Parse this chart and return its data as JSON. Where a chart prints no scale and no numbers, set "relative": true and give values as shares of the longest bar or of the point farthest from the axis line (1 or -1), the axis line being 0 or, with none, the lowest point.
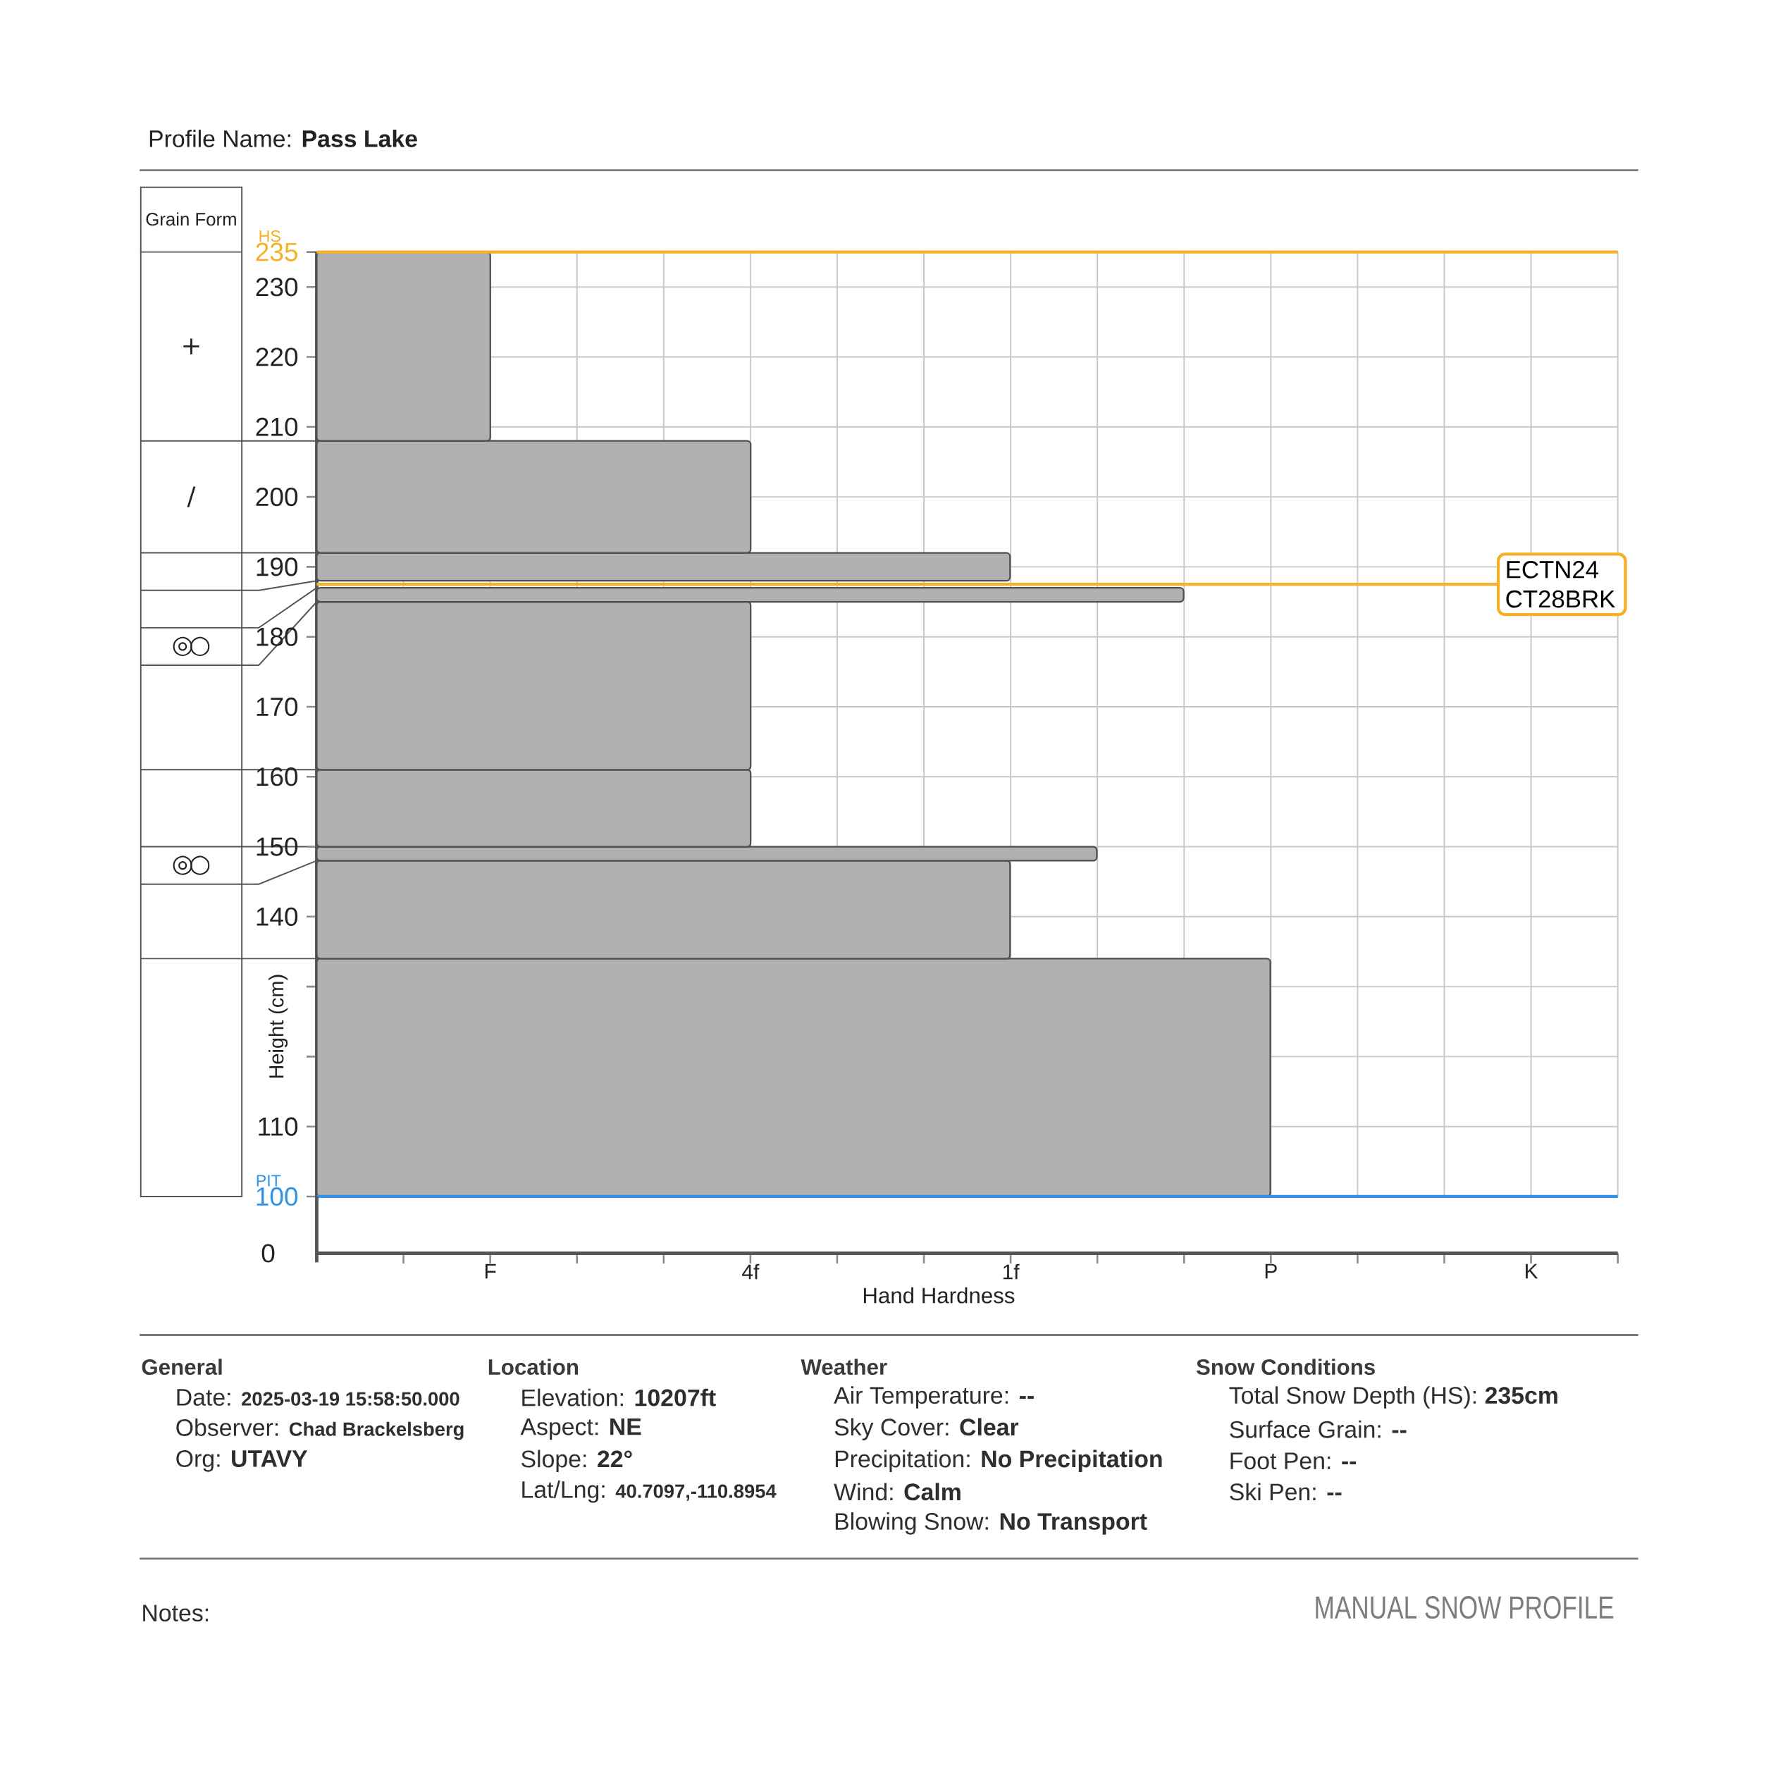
{
  "chart_data": {
    "type": "bar",
    "orientation": "horizontal",
    "relative": true,
    "title": "Profile Name: **Pass Lake**",
    "xlabel": "Hand Hardness",
    "ylabel": "Height (cm)",
    "x": [
      117,
      141,
      149,
      155.5,
      173,
      186,
      187.5,
      190,
      200,
      221.5
    ],
    "values": [
      1,
      0.727,
      0.818,
      0.455,
      0.455,
      0.909,
      null,
      0.727,
      0.455,
      0.182
    ],
    "color": "#b0b0b0",
    "ylim": [
      100,
      235
    ],
    "yticks": [
      100,
      110,
      {
        "value": 120,
        "label": null
      },
      {
        "value": 130,
        "label": null
      },
      140,
      150,
      160,
      170,
      180,
      190,
      200,
      210,
      220,
      230,
      235
    ],
    "grid": true,
    "ref_lines": [
      {
        "axis": "y",
        "value": 235,
        "label": "HS",
        "color": "#f5b027"
      },
      {
        "axis": "y",
        "value": 187.5,
        "label": "ECTN24 CT28BRK",
        "color": "#f5b027"
      },
      {
        "axis": "y",
        "value": 100,
        "label": "PIT",
        "color": "#2e93e6"
      }
    ],
    "annotations": [
      "Grain Form",
      "+",
      "/",
      "◎○",
      "◎○",
      "0",
      "General",
      "Date: **2025-03-19 15:58:50.000**",
      "Observer: **Chad Brackelsberg**",
      "Org: **UTAVY**",
      "Location",
      "Elevation: **10207ft**",
      "Aspect: **NE**",
      "Slope: **22°**",
      "Lat/Lng: **40.7097,-110.8954**",
      "Weather",
      "Air Temperature: **--**",
      "Sky Cover: **Clear**",
      "Precipitation: **No Precipitation**",
      "Wind: **Calm**",
      "Blowing Snow: **No Transport**",
      "Snow Conditions",
      "Total Snow Depth (HS): **235cm**",
      "Surface Grain: **--**",
      "Foot Pen: **--**",
      "Ski Pen: **--**",
      "Notes:",
      "MANUAL SNOW PROFILE",
      "F",
      "4f",
      "1f",
      "P",
      "K"
    ]
  }
}
